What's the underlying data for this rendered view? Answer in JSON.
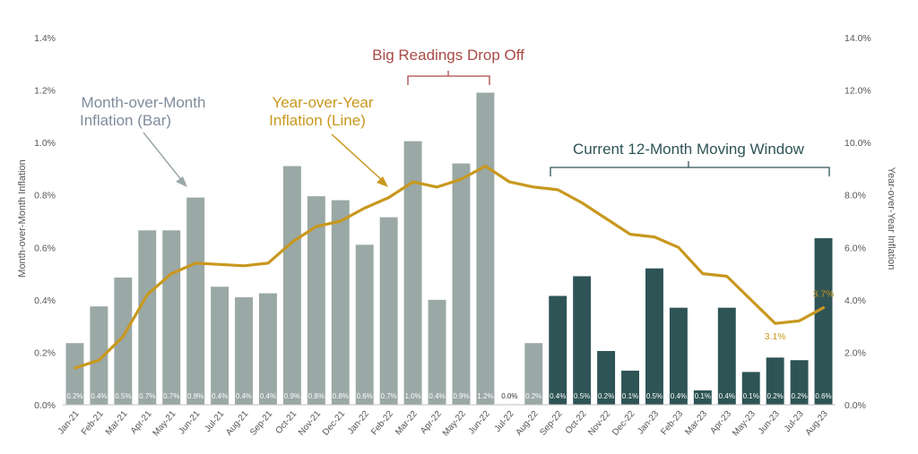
{
  "chart_data": {
    "type": "bar",
    "categories": [
      "Jan-21",
      "Feb-21",
      "Mar-21",
      "Apr-21",
      "May-21",
      "Jun-21",
      "Jul-21",
      "Aug-21",
      "Sep-21",
      "Oct-21",
      "Nov-21",
      "Dec-21",
      "Jan-22",
      "Feb-22",
      "Mar-22",
      "Apr-22",
      "May-22",
      "Jun-22",
      "Jul-22",
      "Aug-22",
      "Sep-22",
      "Oct-22",
      "Nov-22",
      "Dec-22",
      "Jan-23",
      "Feb-23",
      "Mar-23",
      "Apr-23",
      "May-23",
      "Jun-23",
      "Jul-23",
      "Aug-23"
    ],
    "series": [
      {
        "axis": "left",
        "kind": "bar",
        "values": [
          0.235,
          0.375,
          0.485,
          0.665,
          0.665,
          0.79,
          0.45,
          0.41,
          0.425,
          0.91,
          0.795,
          0.78,
          0.61,
          0.715,
          1.005,
          0.4,
          0.92,
          1.19,
          0.0,
          0.235,
          0.415,
          0.49,
          0.205,
          0.13,
          0.52,
          0.37,
          0.055,
          0.37,
          0.125,
          0.18,
          0.17,
          0.635
        ],
        "data_labels": [
          "0.2%",
          "0.4%",
          "0.5%",
          "0.7%",
          "0.7%",
          "0.8%",
          "0.4%",
          "0.4%",
          "0.4%",
          "0.9%",
          "0.8%",
          "0.8%",
          "0.6%",
          "0.7%",
          "1.0%",
          "0.4%",
          "0.9%",
          "1.2%",
          "0.0%",
          "0.2%",
          "0.4%",
          "0.5%",
          "0.2%",
          "0.1%",
          "0.5%",
          "0.4%",
          "0.1%",
          "0.4%",
          "0.1%",
          "0.2%",
          "0.2%",
          "0.6%"
        ],
        "colors": {
          "past": "#9aa8a6",
          "current_window": "#2f5456"
        },
        "current_window_start_index": 20
      },
      {
        "axis": "right",
        "kind": "line",
        "values": [
          1.4,
          1.7,
          2.6,
          4.2,
          5.0,
          5.4,
          5.35,
          5.3,
          5.4,
          6.2,
          6.8,
          7.0,
          7.5,
          7.9,
          8.5,
          8.3,
          8.6,
          9.1,
          8.5,
          8.3,
          8.2,
          7.7,
          7.1,
          6.5,
          6.4,
          6.0,
          5.0,
          4.9,
          4.0,
          3.1,
          3.2,
          3.7
        ],
        "color": "#c8981e",
        "point_labels": [
          {
            "index": 29,
            "text": "3.1%"
          },
          {
            "index": 31,
            "text": "3.7%"
          }
        ]
      }
    ],
    "y_left": {
      "label": "Month-over-Month Inflation",
      "ylim": [
        0,
        1.4
      ],
      "ticks": [
        "0.0%",
        "0.2%",
        "0.4%",
        "0.6%",
        "0.8%",
        "1.0%",
        "1.2%",
        "1.4%"
      ]
    },
    "y_right": {
      "label": "Year-over-Year Inflation",
      "ylim": [
        0,
        14
      ],
      "ticks": [
        "0.0%",
        "2.0%",
        "4.0%",
        "6.0%",
        "8.0%",
        "10.0%",
        "12.0%",
        "14.0%"
      ]
    },
    "grid": false,
    "annotations": {
      "mom_label": [
        "Month-over-Month",
        "Inflation (Bar)"
      ],
      "yoy_label": [
        "Year-over-Year",
        "Inflation (Line)"
      ],
      "big_readings": "Big Readings Drop Off",
      "window_label": "Current 12-Month Moving Window",
      "colors": {
        "mom": "#7f8c9c",
        "yoy": "#c8981e",
        "big": "#a84a45",
        "window": "#2f5456",
        "mom_arrow": "#9aa8a6"
      }
    },
    "axis_text_color": "#555555"
  }
}
